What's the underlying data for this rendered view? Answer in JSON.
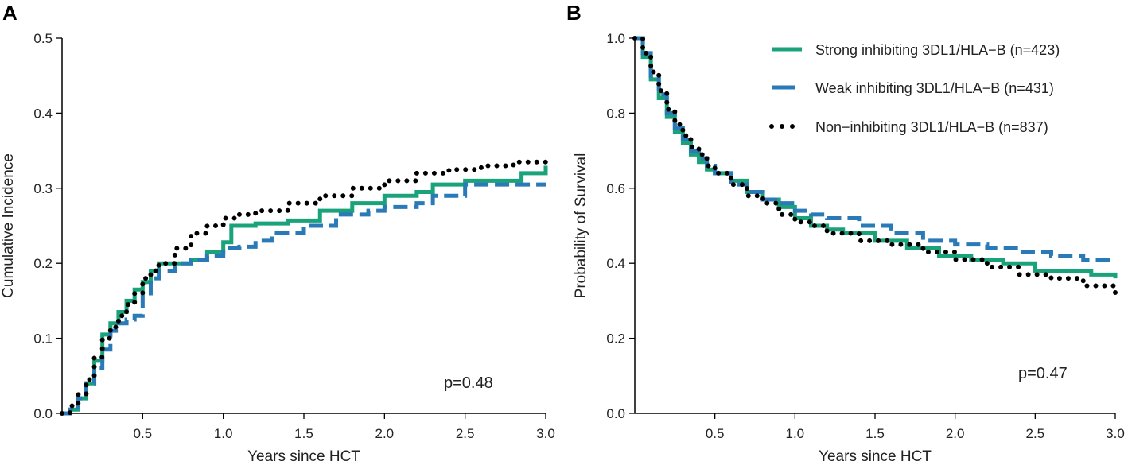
{
  "colors": {
    "strong": "#1aa37a",
    "weak": "#2a7ab8",
    "non": "#000000"
  },
  "legend": [
    {
      "name": "Strong inhibiting 3DL1/HLA−B (n=423)",
      "style": "solid"
    },
    {
      "name": "Weak inhibiting 3DL1/HLA−B (n=431)",
      "style": "dashed"
    },
    {
      "name": "Non−inhibiting 3DL1/HLA−B (n=837)",
      "style": "dotted"
    }
  ],
  "chart_data": [
    {
      "type": "line",
      "panel": "A",
      "xlabel": "Years since HCT",
      "ylabel": "Cumulative Incidence",
      "xlim": [
        0,
        3
      ],
      "ylim": [
        0,
        0.5
      ],
      "x_ticks": [
        0.5,
        1.0,
        1.5,
        2.0,
        2.5,
        3.0
      ],
      "x_tick_labels": [
        "0.5",
        "1.0",
        "1.5",
        "2.0",
        "2.5",
        "3.0"
      ],
      "y_ticks": [
        0.0,
        0.1,
        0.2,
        0.3,
        0.4,
        0.5
      ],
      "y_tick_labels": [
        "0.0",
        "0.1",
        "0.2",
        "0.3",
        "0.4",
        "0.5"
      ],
      "annotation": "p=0.48",
      "series": [
        {
          "name": "Strong inhibiting 3DL1/HLA−B (n=423)",
          "key": "strong",
          "x": [
            0,
            0.05,
            0.1,
            0.15,
            0.2,
            0.25,
            0.3,
            0.35,
            0.4,
            0.45,
            0.5,
            0.55,
            0.6,
            0.7,
            0.8,
            0.9,
            1.0,
            1.05,
            1.2,
            1.4,
            1.6,
            1.8,
            2.0,
            2.2,
            2.3,
            2.5,
            2.7,
            2.85,
            3.0
          ],
          "y": [
            0,
            0.005,
            0.02,
            0.04,
            0.07,
            0.105,
            0.12,
            0.135,
            0.15,
            0.165,
            0.175,
            0.19,
            0.2,
            0.2,
            0.205,
            0.215,
            0.228,
            0.25,
            0.253,
            0.257,
            0.27,
            0.28,
            0.29,
            0.295,
            0.305,
            0.31,
            0.31,
            0.32,
            0.33
          ]
        },
        {
          "name": "Weak inhibiting 3DL1/HLA−B (n=431)",
          "key": "weak",
          "x": [
            0,
            0.05,
            0.1,
            0.15,
            0.2,
            0.25,
            0.3,
            0.35,
            0.4,
            0.45,
            0.5,
            0.55,
            0.6,
            0.7,
            0.8,
            0.9,
            1.0,
            1.1,
            1.2,
            1.3,
            1.5,
            1.7,
            1.9,
            2.0,
            2.2,
            2.3,
            2.5,
            2.8,
            3.0
          ],
          "y": [
            0,
            0.005,
            0.02,
            0.04,
            0.06,
            0.085,
            0.11,
            0.12,
            0.125,
            0.13,
            0.16,
            0.18,
            0.19,
            0.2,
            0.205,
            0.21,
            0.22,
            0.222,
            0.23,
            0.24,
            0.25,
            0.265,
            0.27,
            0.275,
            0.28,
            0.29,
            0.305,
            0.305,
            0.305
          ]
        },
        {
          "name": "Non−inhibiting 3DL1/HLA−B (n=837)",
          "key": "non",
          "x": [
            0,
            0.05,
            0.1,
            0.15,
            0.2,
            0.25,
            0.3,
            0.35,
            0.4,
            0.45,
            0.5,
            0.55,
            0.6,
            0.7,
            0.8,
            0.9,
            1.0,
            1.1,
            1.2,
            1.4,
            1.6,
            1.8,
            2.0,
            2.2,
            2.4,
            2.6,
            2.8,
            3.0
          ],
          "y": [
            0,
            0.01,
            0.025,
            0.045,
            0.075,
            0.1,
            0.115,
            0.13,
            0.145,
            0.16,
            0.18,
            0.19,
            0.2,
            0.22,
            0.24,
            0.25,
            0.26,
            0.265,
            0.27,
            0.28,
            0.29,
            0.3,
            0.31,
            0.32,
            0.325,
            0.33,
            0.335,
            0.345
          ]
        }
      ]
    },
    {
      "type": "line",
      "panel": "B",
      "xlabel": "Years since HCT",
      "ylabel": "Probability of Survival",
      "xlim": [
        0,
        3
      ],
      "ylim": [
        0,
        1
      ],
      "x_ticks": [
        0.5,
        1.0,
        1.5,
        2.0,
        2.5,
        3.0
      ],
      "x_tick_labels": [
        "0.5",
        "1.0",
        "1.5",
        "2.0",
        "2.5",
        "3.0"
      ],
      "y_ticks": [
        0.0,
        0.2,
        0.4,
        0.6,
        0.8,
        1.0
      ],
      "y_tick_labels": [
        "0.0",
        "0.2",
        "0.4",
        "0.6",
        "0.8",
        "1.0"
      ],
      "annotation": "p=0.47",
      "series": [
        {
          "name": "Strong inhibiting 3DL1/HLA−B (n=423)",
          "key": "strong",
          "x": [
            0,
            0.05,
            0.1,
            0.15,
            0.2,
            0.25,
            0.3,
            0.35,
            0.4,
            0.45,
            0.5,
            0.6,
            0.7,
            0.8,
            0.9,
            1.0,
            1.1,
            1.2,
            1.3,
            1.5,
            1.7,
            1.9,
            2.1,
            2.3,
            2.5,
            2.7,
            2.85,
            3.0
          ],
          "y": [
            1.0,
            0.95,
            0.89,
            0.84,
            0.79,
            0.75,
            0.72,
            0.69,
            0.67,
            0.65,
            0.64,
            0.62,
            0.59,
            0.57,
            0.55,
            0.52,
            0.5,
            0.49,
            0.48,
            0.46,
            0.44,
            0.42,
            0.41,
            0.4,
            0.38,
            0.38,
            0.37,
            0.36
          ]
        },
        {
          "name": "Weak inhibiting 3DL1/HLA−B (n=431)",
          "key": "weak",
          "x": [
            0,
            0.05,
            0.1,
            0.15,
            0.2,
            0.25,
            0.3,
            0.35,
            0.4,
            0.45,
            0.5,
            0.6,
            0.7,
            0.8,
            0.9,
            1.0,
            1.1,
            1.2,
            1.4,
            1.6,
            1.8,
            2.0,
            2.2,
            2.4,
            2.6,
            2.8,
            3.0
          ],
          "y": [
            1.0,
            0.96,
            0.9,
            0.85,
            0.8,
            0.76,
            0.73,
            0.7,
            0.68,
            0.66,
            0.64,
            0.61,
            0.59,
            0.57,
            0.56,
            0.54,
            0.53,
            0.52,
            0.5,
            0.48,
            0.46,
            0.45,
            0.44,
            0.43,
            0.42,
            0.41,
            0.41
          ]
        },
        {
          "name": "Non−inhibiting 3DL1/HLA−B (n=837)",
          "key": "non",
          "x": [
            0,
            0.05,
            0.1,
            0.15,
            0.2,
            0.25,
            0.3,
            0.35,
            0.4,
            0.45,
            0.5,
            0.6,
            0.7,
            0.8,
            0.9,
            1.0,
            1.1,
            1.2,
            1.4,
            1.6,
            1.8,
            2.0,
            2.2,
            2.4,
            2.6,
            2.8,
            3.0
          ],
          "y": [
            1.0,
            0.96,
            0.91,
            0.86,
            0.81,
            0.77,
            0.74,
            0.71,
            0.69,
            0.66,
            0.64,
            0.61,
            0.58,
            0.56,
            0.53,
            0.51,
            0.5,
            0.48,
            0.46,
            0.45,
            0.43,
            0.41,
            0.39,
            0.37,
            0.36,
            0.34,
            0.32
          ]
        }
      ]
    }
  ]
}
